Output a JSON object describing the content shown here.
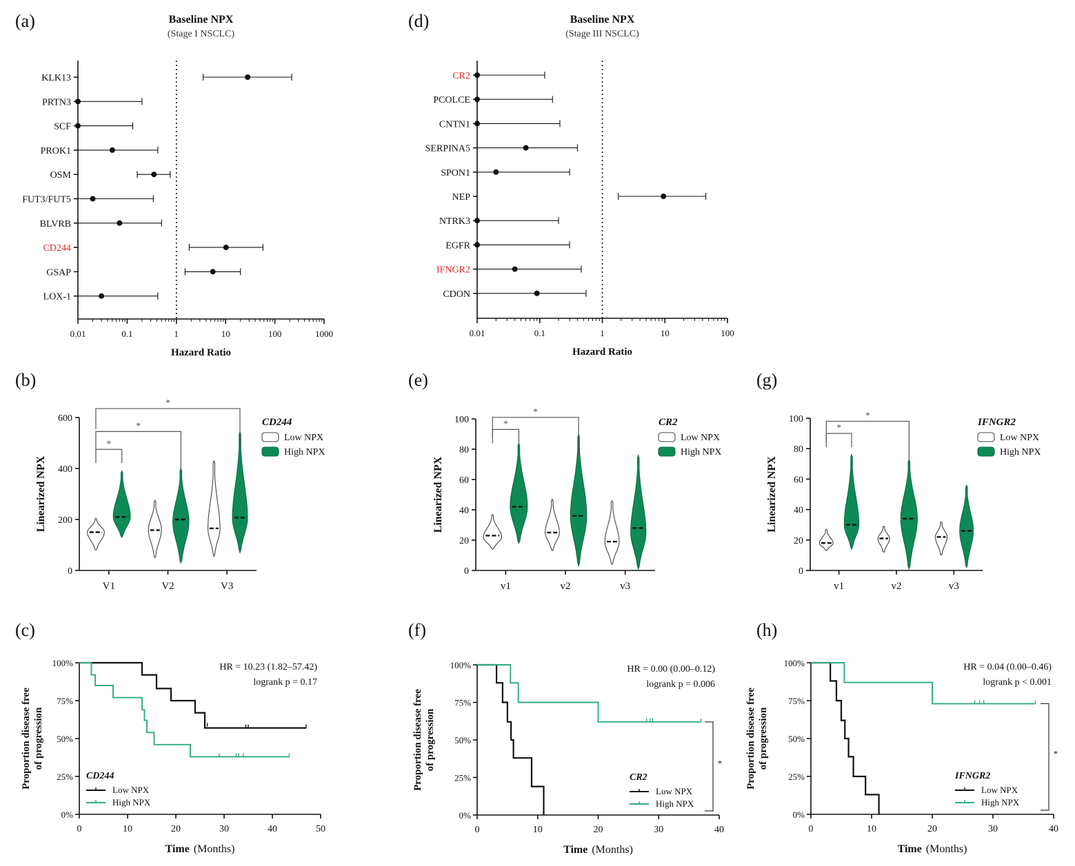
{
  "panel_labels": [
    "(a)",
    "(b)",
    "(c)",
    "(d)",
    "(e)",
    "(f)",
    "(g)",
    "(h)"
  ],
  "colors": {
    "green": "#0e8a55",
    "kmgreen": "#2faa82",
    "black": "#111111",
    "red": "#e0282c",
    "axis": "#111111",
    "light": "#888888"
  },
  "chart_data": [
    {
      "id": "a",
      "type": "forest",
      "title": "Baseline NPX",
      "subtitle": "(Stage I NSCLC)",
      "xlabel": "Hazard Ratio",
      "xscale": "log",
      "xlim": [
        0.01,
        1000
      ],
      "xticks": [
        "0.01",
        "0.1",
        "1",
        "10",
        "100",
        "1000"
      ],
      "xtick_values": [
        0.01,
        0.1,
        1,
        10,
        100,
        1000
      ],
      "ref_line": 1,
      "rows": [
        {
          "label": "KLK13",
          "hr": 28,
          "lo": 3.5,
          "hi": 220,
          "highlight": false
        },
        {
          "label": "PRTN3",
          "hr": 0.01,
          "lo": 0.01,
          "hi": 0.2,
          "highlight": false
        },
        {
          "label": "SCF",
          "hr": 0.01,
          "lo": 0.01,
          "hi": 0.13,
          "highlight": false
        },
        {
          "label": "PROK1",
          "hr": 0.05,
          "lo": 0.01,
          "hi": 0.42,
          "highlight": false
        },
        {
          "label": "OSM",
          "hr": 0.35,
          "lo": 0.16,
          "hi": 0.75,
          "highlight": false
        },
        {
          "label": "FUT3/FUT5",
          "hr": 0.02,
          "lo": 0.01,
          "hi": 0.34,
          "highlight": false
        },
        {
          "label": "BLVRB",
          "hr": 0.07,
          "lo": 0.01,
          "hi": 0.5,
          "highlight": false
        },
        {
          "label": "CD244",
          "hr": 10.2,
          "lo": 1.82,
          "hi": 57.4,
          "highlight": true
        },
        {
          "label": "GSAP",
          "hr": 5.5,
          "lo": 1.5,
          "hi": 20,
          "highlight": false
        },
        {
          "label": "LOX-1",
          "hr": 0.03,
          "lo": 0.01,
          "hi": 0.42,
          "highlight": false
        }
      ]
    },
    {
      "id": "d",
      "type": "forest",
      "title": "Baseline NPX",
      "subtitle": "(Stage III NSCLC)",
      "xlabel": "Hazard Ratio",
      "xscale": "log",
      "xlim": [
        0.01,
        100
      ],
      "xticks": [
        "0.01",
        "0.1",
        "1",
        "10",
        "100"
      ],
      "xtick_values": [
        0.01,
        0.1,
        1,
        10,
        100
      ],
      "ref_line": 1,
      "rows": [
        {
          "label": "CR2",
          "hr": 0.01,
          "lo": 0.01,
          "hi": 0.12,
          "highlight": true
        },
        {
          "label": "PCOLCE",
          "hr": 0.01,
          "lo": 0.01,
          "hi": 0.16,
          "highlight": false
        },
        {
          "label": "CNTN1",
          "hr": 0.01,
          "lo": 0.01,
          "hi": 0.21,
          "highlight": false
        },
        {
          "label": "SERPINA5",
          "hr": 0.06,
          "lo": 0.01,
          "hi": 0.4,
          "highlight": false
        },
        {
          "label": "SPON1",
          "hr": 0.02,
          "lo": 0.01,
          "hi": 0.3,
          "highlight": false
        },
        {
          "label": "NEP",
          "hr": 9.5,
          "lo": 1.8,
          "hi": 45,
          "highlight": false
        },
        {
          "label": "NTRK3",
          "hr": 0.01,
          "lo": 0.01,
          "hi": 0.2,
          "highlight": false
        },
        {
          "label": "EGFR",
          "hr": 0.01,
          "lo": 0.01,
          "hi": 0.3,
          "highlight": false
        },
        {
          "label": "IFNGR2",
          "hr": 0.04,
          "lo": 0.01,
          "hi": 0.46,
          "highlight": true
        },
        {
          "label": "CDON",
          "hr": 0.09,
          "lo": 0.01,
          "hi": 0.55,
          "highlight": false
        }
      ]
    },
    {
      "id": "b",
      "type": "violin",
      "ylabel": "Linearized NPX",
      "ylim": [
        0,
        600
      ],
      "yticks": [
        0,
        200,
        400,
        600
      ],
      "categories": [
        "V1",
        "V2",
        "V3"
      ],
      "legend_title": "CD244",
      "legend": [
        "Low NPX",
        "High NPX"
      ],
      "series": [
        {
          "name": "Low NPX",
          "medians": [
            150,
            158,
            165
          ],
          "mins": [
            80,
            50,
            55
          ],
          "maxs": [
            205,
            275,
            430
          ],
          "peaks": [
            150,
            160,
            165
          ],
          "widths": [
            0.85,
            0.65,
            0.6
          ]
        },
        {
          "name": "High NPX",
          "medians": [
            210,
            200,
            207
          ],
          "mins": [
            130,
            30,
            70
          ],
          "maxs": [
            390,
            400,
            545
          ],
          "peaks": [
            210,
            190,
            205
          ],
          "widths": [
            0.85,
            0.8,
            0.75
          ]
        }
      ],
      "brackets": [
        {
          "from": 0,
          "to": 0,
          "y": 475,
          "label": "*"
        },
        {
          "from": 0,
          "to": 1,
          "y": 545,
          "label": "*"
        },
        {
          "from": 0,
          "to": 2,
          "y": 635,
          "label": "*"
        }
      ]
    },
    {
      "id": "e",
      "type": "violin",
      "ylabel": "Linearized NPX",
      "ylim": [
        0,
        100
      ],
      "yticks": [
        0,
        20,
        40,
        60,
        80,
        100
      ],
      "categories": [
        "v1",
        "v2",
        "v3"
      ],
      "legend_title": "CR2",
      "legend": [
        "Low NPX",
        "High NPX"
      ],
      "series": [
        {
          "name": "Low NPX",
          "medians": [
            23,
            25,
            19
          ],
          "mins": [
            14,
            13,
            4
          ],
          "maxs": [
            37,
            47,
            46
          ],
          "peaks": [
            22,
            25,
            19
          ],
          "widths": [
            0.9,
            0.7,
            0.7
          ]
        },
        {
          "name": "High NPX",
          "medians": [
            42,
            36,
            28
          ],
          "mins": [
            18,
            3,
            1
          ],
          "maxs": [
            84,
            90,
            76
          ],
          "peaks": [
            42,
            36,
            25
          ],
          "widths": [
            0.85,
            0.8,
            0.75
          ]
        }
      ],
      "brackets": [
        {
          "from": 0,
          "to": 0,
          "y": 93,
          "label": "*"
        },
        {
          "from": 0,
          "to": 1,
          "y": 101,
          "label": "*"
        }
      ]
    },
    {
      "id": "g",
      "type": "violin",
      "ylabel": "Linearized NPX",
      "ylim": [
        0,
        100
      ],
      "yticks": [
        0,
        20,
        40,
        60,
        80,
        100
      ],
      "categories": [
        "v1",
        "v2",
        "v3"
      ],
      "legend_title": "IFNGR2",
      "legend": [
        "Low NPX",
        "High NPX"
      ],
      "series": [
        {
          "name": "Low NPX",
          "medians": [
            18,
            21,
            22
          ],
          "mins": [
            13,
            12,
            10
          ],
          "maxs": [
            27,
            29,
            32
          ],
          "peaks": [
            18,
            21,
            22
          ],
          "widths": [
            0.7,
            0.6,
            0.6
          ]
        },
        {
          "name": "High NPX",
          "medians": [
            30,
            34,
            26
          ],
          "mins": [
            14,
            1,
            2
          ],
          "maxs": [
            76,
            73,
            56
          ],
          "peaks": [
            30,
            34,
            26
          ],
          "widths": [
            0.75,
            0.85,
            0.7
          ]
        }
      ],
      "brackets": [
        {
          "from": 0,
          "to": 0,
          "y": 90,
          "label": "*"
        },
        {
          "from": 0,
          "to": 1,
          "y": 98,
          "label": "*"
        }
      ]
    },
    {
      "id": "c",
      "type": "kaplan-meier",
      "ylabel": "Proportion disease free of progression",
      "xlabel_bold": "Time",
      "xlabel_rest": "(Months)",
      "xlim": [
        0,
        50
      ],
      "xticks": [
        0,
        10,
        20,
        30,
        40,
        50
      ],
      "ylim": [
        0,
        100
      ],
      "yticks": [
        "0%",
        "25%",
        "50%",
        "75%",
        "100%"
      ],
      "annotation": [
        "HR = 10.23 (1.82–57.42)",
        "logrank p = 0.17"
      ],
      "legend_title": "CD244",
      "legend": [
        "Low NPX",
        "High NPX"
      ],
      "series": [
        {
          "name": "Low NPX",
          "steps": [
            [
              0,
              100
            ],
            [
              13,
              100
            ],
            [
              13,
              92
            ],
            [
              16,
              92
            ],
            [
              16,
              83
            ],
            [
              19,
              83
            ],
            [
              19,
              75
            ],
            [
              24,
              75
            ],
            [
              24,
              67
            ],
            [
              26,
              67
            ],
            [
              26,
              57
            ],
            [
              47,
              57
            ]
          ],
          "censored": [
            [
              24,
              67
            ],
            [
              26.5,
              58
            ],
            [
              34.5,
              57
            ],
            [
              35,
              57
            ],
            [
              47,
              57
            ]
          ]
        },
        {
          "name": "High NPX",
          "steps": [
            [
              0,
              100
            ],
            [
              2.5,
              100
            ],
            [
              2.5,
              92
            ],
            [
              3.3,
              92
            ],
            [
              3.3,
              85
            ],
            [
              7,
              85
            ],
            [
              7,
              77
            ],
            [
              13,
              77
            ],
            [
              13,
              69
            ],
            [
              13.5,
              69
            ],
            [
              13.5,
              62
            ],
            [
              14,
              62
            ],
            [
              14,
              54
            ],
            [
              15.5,
              54
            ],
            [
              15.5,
              46
            ],
            [
              23,
              46
            ],
            [
              23,
              38
            ],
            [
              43.5,
              38
            ]
          ],
          "censored": [
            [
              29,
              38
            ],
            [
              32.5,
              38
            ],
            [
              33,
              38
            ],
            [
              34,
              38
            ],
            [
              43.5,
              38
            ]
          ]
        }
      ]
    },
    {
      "id": "f",
      "type": "kaplan-meier",
      "ylabel": "Proportion disease free of progression",
      "xlabel_bold": "Time",
      "xlabel_rest": "(Months)",
      "xlim": [
        0,
        40
      ],
      "xticks": [
        0,
        10,
        20,
        30,
        40
      ],
      "ylim": [
        0,
        100
      ],
      "yticks": [
        "0%",
        "25%",
        "50%",
        "75%",
        "100%"
      ],
      "annotation": [
        "HR = 0.00 (0.00–0.12)",
        "logrank p = 0.006"
      ],
      "legend_title": "CR2",
      "legend": [
        "Low NPX",
        "High NPX"
      ],
      "sig": "*",
      "series": [
        {
          "name": "Low NPX",
          "steps": [
            [
              0,
              100
            ],
            [
              3.2,
              100
            ],
            [
              3.2,
              88
            ],
            [
              4.2,
              88
            ],
            [
              4.2,
              75
            ],
            [
              5,
              75
            ],
            [
              5,
              62
            ],
            [
              5.6,
              62
            ],
            [
              5.6,
              50
            ],
            [
              6,
              50
            ],
            [
              6,
              38
            ],
            [
              9,
              38
            ],
            [
              9,
              19
            ],
            [
              11,
              19
            ],
            [
              11,
              0
            ]
          ],
          "censored": []
        },
        {
          "name": "High NPX",
          "steps": [
            [
              0,
              100
            ],
            [
              5.5,
              100
            ],
            [
              5.5,
              88
            ],
            [
              6.8,
              88
            ],
            [
              6.8,
              75
            ],
            [
              20,
              75
            ],
            [
              20,
              62
            ],
            [
              37,
              62
            ]
          ],
          "censored": [
            [
              28,
              62
            ],
            [
              28.6,
              62
            ],
            [
              29,
              62
            ],
            [
              37,
              62
            ]
          ]
        }
      ]
    },
    {
      "id": "h",
      "type": "kaplan-meier",
      "ylabel": "Proportion disease free of progression",
      "xlabel_bold": "Time",
      "xlabel_rest": "(Months)",
      "xlim": [
        0,
        40
      ],
      "xticks": [
        0,
        10,
        20,
        30,
        40
      ],
      "ylim": [
        0,
        100
      ],
      "yticks": [
        "0%",
        "25%",
        "50%",
        "75%",
        "100%"
      ],
      "annotation": [
        "HR = 0.04 (0.00–0.46)",
        "logrank p < 0.001"
      ],
      "legend_title": "IFNGR2",
      "legend": [
        "Low NPX",
        "High NPX"
      ],
      "sig": "*",
      "series": [
        {
          "name": "Low NPX",
          "steps": [
            [
              0,
              100
            ],
            [
              3.2,
              100
            ],
            [
              3.2,
              88
            ],
            [
              4.2,
              88
            ],
            [
              4.2,
              75
            ],
            [
              5,
              75
            ],
            [
              5,
              62
            ],
            [
              5.6,
              62
            ],
            [
              5.6,
              50
            ],
            [
              6.2,
              50
            ],
            [
              6.2,
              38
            ],
            [
              7,
              38
            ],
            [
              7,
              25
            ],
            [
              9,
              25
            ],
            [
              9,
              13
            ],
            [
              11.2,
              13
            ],
            [
              11.2,
              0
            ]
          ],
          "censored": []
        },
        {
          "name": "High NPX",
          "steps": [
            [
              0,
              100
            ],
            [
              5.5,
              100
            ],
            [
              5.5,
              87
            ],
            [
              20,
              87
            ],
            [
              20,
              73
            ],
            [
              37,
              73
            ]
          ],
          "censored": [
            [
              27,
              73
            ],
            [
              27.8,
              73
            ],
            [
              28.5,
              73
            ],
            [
              37,
              73
            ]
          ]
        }
      ]
    }
  ]
}
